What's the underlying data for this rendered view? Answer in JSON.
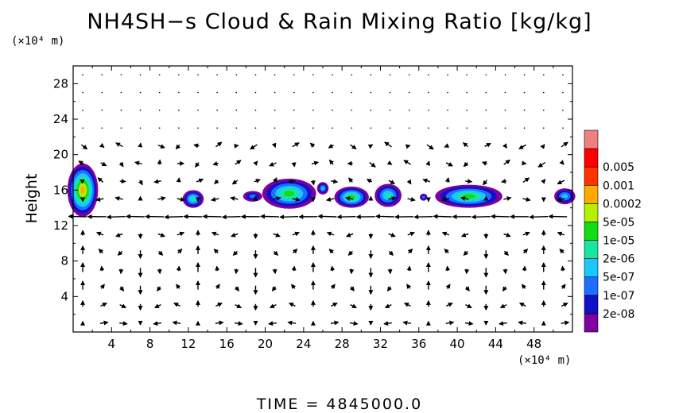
{
  "chart_data": {
    "type": "heatmap",
    "title": "NH4SH−s Cloud & Rain Mixing Ratio [kg/kg]",
    "xlabel": "",
    "ylabel": "Height",
    "x_unit": "(×10⁴ m)",
    "y_unit": "(×10⁴ m)",
    "xlim": [
      0,
      52
    ],
    "ylim": [
      0,
      30
    ],
    "x_ticks": [
      4,
      8,
      12,
      16,
      20,
      24,
      28,
      32,
      36,
      40,
      44,
      48
    ],
    "y_ticks": [
      4,
      8,
      12,
      16,
      20,
      24,
      28
    ],
    "grid": false,
    "colorbar": {
      "position": "right",
      "levels": [
        "2e-08",
        "1e-07",
        "5e-07",
        "2e-06",
        "1e-05",
        "5e-05",
        "0.0002",
        "0.001",
        "0.005"
      ],
      "colors": [
        "#8000a0",
        "#1010c8",
        "#1e6eff",
        "#18c8ff",
        "#18e6a0",
        "#14dc14",
        "#b4f000",
        "#ffaa00",
        "#ff3200",
        "#ff0000",
        "#f08080"
      ]
    },
    "cloud_patches": [
      {
        "x": 1.0,
        "y": 16.0,
        "rx": 1.6,
        "ry": 3.0,
        "level": 7
      },
      {
        "x": 12.5,
        "y": 15.0,
        "rx": 1.1,
        "ry": 1.0,
        "level": 4
      },
      {
        "x": 18.7,
        "y": 15.3,
        "rx": 1.0,
        "ry": 0.6,
        "level": 2
      },
      {
        "x": 22.5,
        "y": 15.6,
        "rx": 2.8,
        "ry": 1.7,
        "level": 5
      },
      {
        "x": 26.0,
        "y": 16.2,
        "rx": 0.6,
        "ry": 0.7,
        "level": 3
      },
      {
        "x": 29.0,
        "y": 15.2,
        "rx": 1.8,
        "ry": 1.2,
        "level": 5
      },
      {
        "x": 32.8,
        "y": 15.4,
        "rx": 1.4,
        "ry": 1.3,
        "level": 4
      },
      {
        "x": 36.5,
        "y": 15.2,
        "rx": 0.4,
        "ry": 0.4,
        "level": 2
      },
      {
        "x": 41.2,
        "y": 15.3,
        "rx": 3.5,
        "ry": 1.3,
        "level": 5
      },
      {
        "x": 51.2,
        "y": 15.3,
        "rx": 1.1,
        "ry": 0.9,
        "level": 3
      }
    ],
    "vectors": {
      "x_spacing": 2,
      "y_spacing": 2,
      "jet_level": 13.5
    }
  },
  "footer": {
    "label": "TIME",
    "value": "4845000.0"
  }
}
